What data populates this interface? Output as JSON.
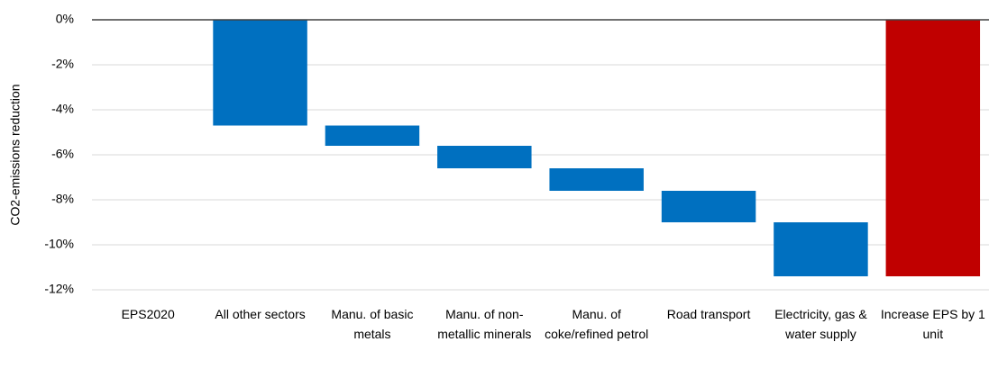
{
  "chart_data": {
    "type": "waterfall",
    "y_label": "CO2-emissions reduction",
    "categories": [
      "EPS2020",
      "All other sectors",
      "Manu. of basic metals",
      "Manu. of non-metallic minerals",
      "Manu. of coke/refined petrol",
      "Road transport",
      "Electricity, gas & water supply",
      "Increase EPS by 1 unit"
    ],
    "values": [
      0,
      -4.7,
      -0.9,
      -1.0,
      -1.0,
      -1.4,
      -2.4,
      -11.4
    ],
    "measures": [
      "absolute",
      "relative",
      "relative",
      "relative",
      "relative",
      "relative",
      "relative",
      "total"
    ],
    "color": "#0070c0",
    "total_color": "#c00000",
    "ylim": [
      -12,
      0
    ],
    "yticks": [
      {
        "value": 0,
        "label": "0%"
      },
      {
        "value": -2,
        "label": "-2%"
      },
      {
        "value": -4,
        "label": "-4%"
      },
      {
        "value": -6,
        "label": "-6%"
      },
      {
        "value": -8,
        "label": "-8%"
      },
      {
        "value": -10,
        "label": "-10%"
      },
      {
        "value": -12,
        "label": "-12%"
      }
    ],
    "grid": true
  }
}
